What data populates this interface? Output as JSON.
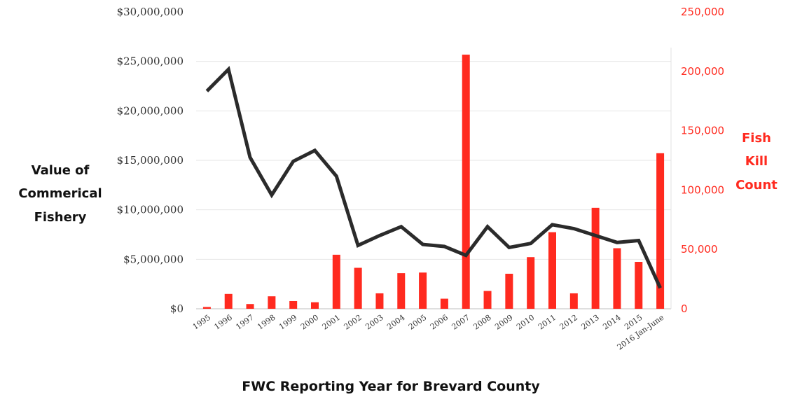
{
  "chart_data": {
    "type": "bar+line",
    "categories": [
      "1995",
      "1996",
      "1997",
      "1998",
      "1999",
      "2000",
      "2001",
      "2002",
      "2003",
      "2004",
      "2005",
      "2006",
      "2007",
      "2008",
      "2009",
      "2010",
      "2011",
      "2012",
      "2013",
      "2014",
      "2015",
      "2016 Jan-June"
    ],
    "series": [
      {
        "axis": "right",
        "type": "bar",
        "color": "#ff2a1f",
        "values": [
          1500,
          12500,
          4000,
          10500,
          6500,
          5500,
          45500,
          34500,
          13000,
          30000,
          30500,
          8500,
          214000,
          15000,
          29500,
          43500,
          64500,
          13000,
          85000,
          51000,
          39500,
          131000
        ]
      },
      {
        "axis": "left",
        "type": "line",
        "color": "#2b2b2b",
        "values": [
          22000000,
          24200000,
          15300000,
          11500000,
          14900000,
          16000000,
          13400000,
          6400000,
          7400000,
          8300000,
          6500000,
          6300000,
          5400000,
          8300000,
          6200000,
          6600000,
          8500000,
          8100000,
          7400000,
          6700000,
          6900000,
          2100000
        ]
      }
    ],
    "y_left": {
      "label": "Value of Commerical Fishery",
      "label_lines": [
        "Value of",
        "Commerical",
        "Fishery"
      ],
      "range": [
        0,
        30000000
      ],
      "ticks": [
        "$0",
        "$5,000,000",
        "$10,000,000",
        "$15,000,000",
        "$20,000,000",
        "$25,000,000",
        "$30,000,000"
      ],
      "color": "#111111"
    },
    "y_right": {
      "label": "Fish Kill Count",
      "label_lines": [
        "Fish",
        "Kill",
        "Count"
      ],
      "range": [
        0,
        250000
      ],
      "ticks": [
        "0",
        "50,000",
        "100,000",
        "150,000",
        "200,000",
        "250,000"
      ],
      "color": "#ff2a1f"
    },
    "xlabel": "FWC Reporting Year for Brevard County",
    "grid": true
  }
}
